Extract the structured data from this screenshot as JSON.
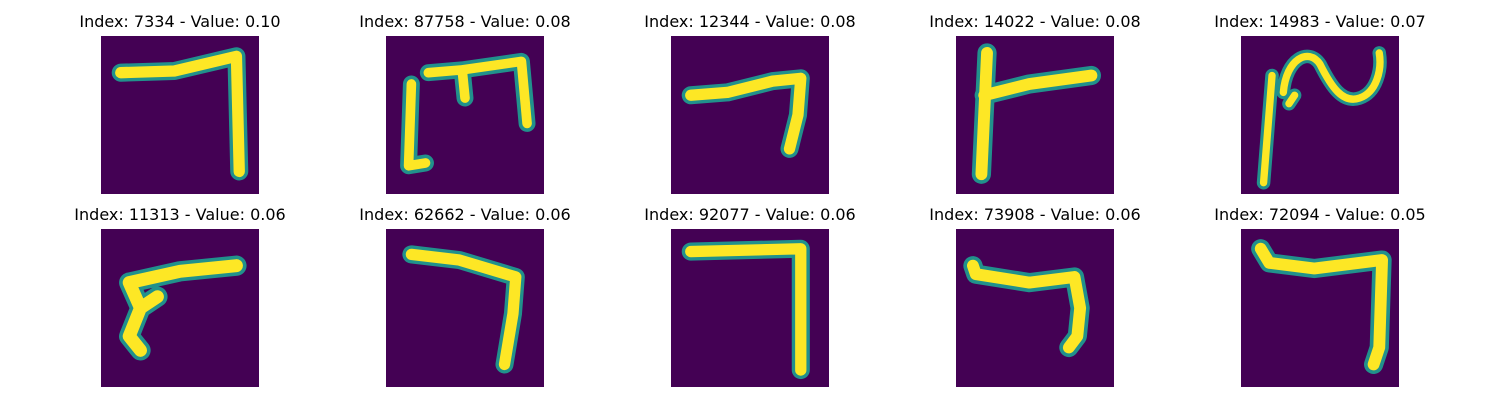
{
  "colors": {
    "background": "#440154",
    "mid": "#21918c",
    "light": "#5ec962",
    "stroke": "#fde725"
  },
  "panels": [
    {
      "title": "Index: 7334 - Value: 0.10",
      "icon": "digit-seven-image"
    },
    {
      "title": "Index: 87758 - Value: 0.08",
      "icon": "digit-seven-image"
    },
    {
      "title": "Index: 12344 - Value: 0.08",
      "icon": "digit-seven-image"
    },
    {
      "title": "Index: 14022 - Value: 0.08",
      "icon": "digit-seven-image"
    },
    {
      "title": "Index: 14983 - Value: 0.07",
      "icon": "digit-seven-image"
    },
    {
      "title": "Index: 11313 - Value: 0.06",
      "icon": "digit-seven-image"
    },
    {
      "title": "Index: 62662 - Value: 0.06",
      "icon": "digit-seven-image"
    },
    {
      "title": "Index: 92077 - Value: 0.06",
      "icon": "digit-seven-image"
    },
    {
      "title": "Index: 73908 - Value: 0.06",
      "icon": "digit-seven-image"
    },
    {
      "title": "Index: 72094 - Value: 0.05",
      "icon": "digit-seven-image"
    }
  ]
}
